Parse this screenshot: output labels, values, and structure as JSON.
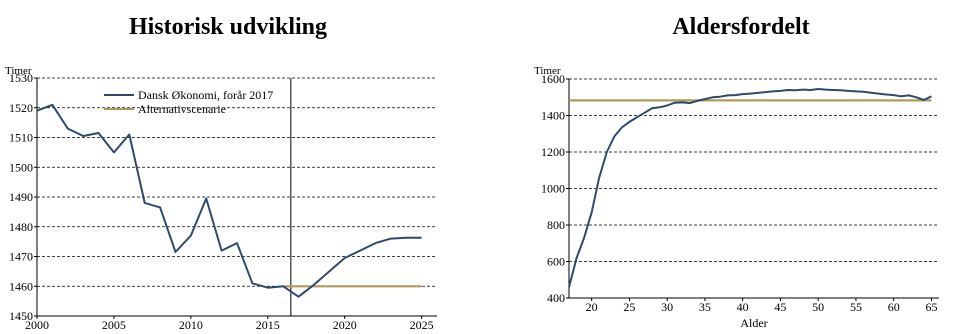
{
  "chart_data": [
    {
      "type": "line",
      "title": "Historisk udvikling",
      "ylabel": "Timer",
      "xlabel": "",
      "xlim": [
        2000,
        2026
      ],
      "ylim": [
        1450,
        1530
      ],
      "xticks": [
        2000,
        2005,
        2010,
        2015,
        2020,
        2025
      ],
      "yticks": [
        1450,
        1460,
        1470,
        1480,
        1490,
        1500,
        1510,
        1520,
        1530
      ],
      "grid": "horizontal dashed",
      "vline": 2016.5,
      "legend_position": "top-right",
      "series": [
        {
          "name": "Dansk Økonomi, forår 2017",
          "color": "#2e4a6e",
          "x": [
            2000,
            2001,
            2002,
            2003,
            2004,
            2005,
            2006,
            2007,
            2008,
            2009,
            2010,
            2011,
            2012,
            2013,
            2014,
            2015,
            2016,
            2017,
            2018,
            2019,
            2020,
            2021,
            2022,
            2023,
            2024,
            2025
          ],
          "values": [
            1519,
            1521,
            1513,
            1510.5,
            1511.5,
            1505,
            1511,
            1488,
            1486.5,
            1471.5,
            1477,
            1489.5,
            1472,
            1474.5,
            1461,
            1459.5,
            1460,
            1456.5,
            1460.5,
            1465,
            1469.5,
            1472,
            1474.5,
            1476,
            1476.3,
            1476.3
          ]
        },
        {
          "name": "Alternativscenarie",
          "color": "#b09a5a",
          "x": [
            2016,
            2025
          ],
          "values": [
            1460,
            1460
          ]
        }
      ]
    },
    {
      "type": "line",
      "title": "Aldersfordelt",
      "ylabel": "Timer",
      "xlabel": "Alder",
      "xlim": [
        17,
        66
      ],
      "ylim": [
        400,
        1600
      ],
      "xticks": [
        20,
        25,
        30,
        35,
        40,
        45,
        50,
        55,
        60,
        65
      ],
      "yticks": [
        400,
        600,
        800,
        1000,
        1200,
        1400,
        1600
      ],
      "grid": "horizontal dashed",
      "series": [
        {
          "name": "Dansk Økonomi, forår 2017",
          "color": "#2e4a6e",
          "x": [
            17,
            18,
            19,
            20,
            21,
            22,
            23,
            24,
            25,
            26,
            27,
            28,
            29,
            30,
            31,
            32,
            33,
            34,
            35,
            36,
            37,
            38,
            39,
            40,
            41,
            42,
            43,
            44,
            45,
            46,
            47,
            48,
            49,
            50,
            51,
            52,
            53,
            54,
            55,
            56,
            57,
            58,
            59,
            60,
            61,
            62,
            63,
            64,
            65
          ],
          "values": [
            460,
            620,
            730,
            870,
            1060,
            1200,
            1285,
            1335,
            1365,
            1390,
            1415,
            1440,
            1445,
            1455,
            1470,
            1472,
            1468,
            1480,
            1490,
            1500,
            1503,
            1510,
            1512,
            1517,
            1520,
            1524,
            1528,
            1532,
            1535,
            1540,
            1538,
            1542,
            1540,
            1545,
            1542,
            1540,
            1538,
            1535,
            1532,
            1530,
            1525,
            1520,
            1515,
            1512,
            1505,
            1510,
            1500,
            1485,
            1505
          ]
        },
        {
          "name": "Alternativscenarie",
          "color": "#b09a5a",
          "x": [
            17,
            65
          ],
          "values": [
            1483,
            1483
          ]
        }
      ]
    }
  ]
}
